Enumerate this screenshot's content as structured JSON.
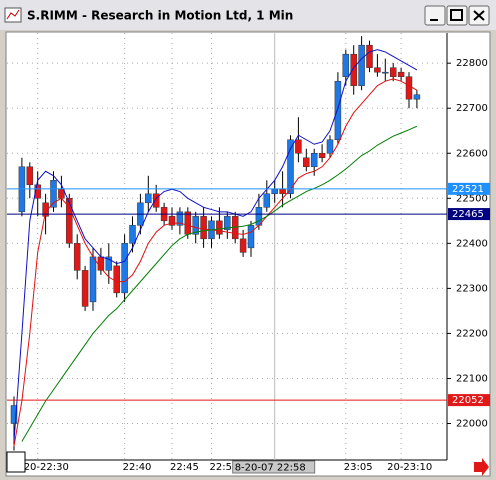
{
  "window": {
    "title": "S.RIMM - Research in Motion Ltd, 1 Min"
  },
  "chart_data": {
    "type": "candlestick",
    "categories": [
      null,
      null,
      null,
      "20-22:30",
      null,
      null,
      null,
      null,
      null,
      null,
      null,
      null,
      null,
      null,
      "22:40",
      null,
      null,
      null,
      null,
      null,
      "22:45",
      null,
      null,
      null,
      null,
      "22:5",
      null,
      null,
      null,
      null,
      null,
      null,
      null,
      "8-20-07 22:58",
      null,
      null,
      null,
      null,
      null,
      null,
      null,
      null,
      "23:05",
      null,
      null,
      null,
      null,
      null,
      null,
      "20-23:10",
      null,
      null
    ],
    "crosshair_category": 33,
    "open": [
      22000,
      22470,
      22570,
      22530,
      22490,
      22480,
      22520,
      22500,
      22400,
      22340,
      22270,
      22370,
      22340,
      22350,
      22290,
      22400,
      22440,
      22490,
      22510,
      22480,
      22460,
      22440,
      22470,
      22420,
      22460,
      22410,
      22450,
      22430,
      22460,
      22410,
      22390,
      22440,
      22480,
      22510,
      22520,
      22510,
      22630,
      22590,
      22570,
      22600,
      22600,
      22630,
      22770,
      22820,
      22750,
      22840,
      22790,
      22780,
      22790,
      22780,
      22770,
      22720
    ],
    "high": [
      22060,
      22590,
      22580,
      22560,
      22510,
      22560,
      22550,
      22510,
      22420,
      22350,
      22390,
      22390,
      22400,
      22360,
      22420,
      22460,
      22510,
      22550,
      22530,
      22490,
      22480,
      22480,
      22480,
      22470,
      22480,
      22460,
      22480,
      22470,
      22470,
      22430,
      22450,
      22510,
      22540,
      22540,
      22560,
      22640,
      22680,
      22610,
      22610,
      22620,
      22640,
      22780,
      22830,
      22840,
      22860,
      22850,
      22820,
      22810,
      22800,
      22790,
      22780,
      22740
    ],
    "low": [
      21940,
      22460,
      22500,
      22460,
      22420,
      22470,
      22480,
      22390,
      22320,
      22250,
      22250,
      22330,
      22310,
      22280,
      22270,
      22380,
      22420,
      22470,
      22470,
      22440,
      22430,
      22420,
      22410,
      22400,
      22390,
      22390,
      22410,
      22410,
      22400,
      22370,
      22370,
      22430,
      22470,
      22490,
      22480,
      22500,
      22580,
      22560,
      22550,
      22580,
      22590,
      22620,
      22750,
      22730,
      22740,
      22780,
      22770,
      22760,
      22760,
      22760,
      22700,
      22700
    ],
    "close": [
      22040,
      22570,
      22530,
      22500,
      22460,
      22540,
      22500,
      22400,
      22340,
      22260,
      22370,
      22340,
      22370,
      22290,
      22400,
      22440,
      22490,
      22510,
      22480,
      22450,
      22440,
      22470,
      22420,
      22460,
      22410,
      22450,
      22420,
      22460,
      22410,
      22380,
      22440,
      22480,
      22510,
      22520,
      22510,
      22630,
      22600,
      22570,
      22600,
      22590,
      22630,
      22760,
      22820,
      22750,
      22840,
      22790,
      22780,
      22780,
      22770,
      22770,
      22720,
      22730
    ],
    "up_color": "#1e78e6",
    "down_color": "#e01818",
    "series": [
      {
        "color": "#1010c8",
        "values": [
          21960,
          22200,
          22450,
          22540,
          22560,
          22550,
          22530,
          22490,
          22450,
          22410,
          22390,
          22370,
          22365,
          22355,
          22360,
          22390,
          22430,
          22470,
          22500,
          22515,
          22520,
          22515,
          22500,
          22490,
          22480,
          22475,
          22470,
          22470,
          22465,
          22460,
          22470,
          22500,
          22520,
          22540,
          22570,
          22610,
          22640,
          22630,
          22620,
          22625,
          22650,
          22700,
          22760,
          22790,
          22810,
          22825,
          22830,
          22825,
          22815,
          22805,
          22795,
          22785
        ]
      },
      {
        "color": "#e01010",
        "values": [
          21950,
          22050,
          22200,
          22380,
          22470,
          22490,
          22500,
          22480,
          22440,
          22400,
          22370,
          22345,
          22325,
          22315,
          22315,
          22330,
          22360,
          22400,
          22425,
          22440,
          22445,
          22445,
          22440,
          22435,
          22432,
          22430,
          22428,
          22425,
          22422,
          22420,
          22425,
          22440,
          22460,
          22480,
          22500,
          22520,
          22545,
          22555,
          22560,
          22570,
          22590,
          22620,
          22660,
          22690,
          22710,
          22730,
          22750,
          22760,
          22765,
          22760,
          22750,
          22740
        ]
      },
      {
        "color": "#008000",
        "values": [
          null,
          21960,
          21990,
          22020,
          22050,
          22075,
          22100,
          22125,
          22150,
          22175,
          22200,
          22220,
          22240,
          22255,
          22275,
          22295,
          22315,
          22335,
          22355,
          22375,
          22395,
          22410,
          22420,
          22425,
          22428,
          22430,
          22432,
          22434,
          22436,
          22438,
          22442,
          22450,
          22460,
          22472,
          22485,
          22495,
          22505,
          22515,
          22522,
          22530,
          22540,
          22552,
          22565,
          22580,
          22595,
          22605,
          22618,
          22628,
          22638,
          22645,
          22652,
          22660
        ]
      }
    ],
    "hlines": [
      {
        "value": 22521,
        "color": "#1e90ff"
      },
      {
        "value": 22465,
        "color": "#000080"
      },
      {
        "value": 22052,
        "color": "#e01818"
      }
    ],
    "ylim": [
      21919,
      22867
    ],
    "yticks": [
      22000,
      22100,
      22200,
      22300,
      22400,
      22500,
      22600,
      22700,
      22800
    ],
    "grid": true
  }
}
